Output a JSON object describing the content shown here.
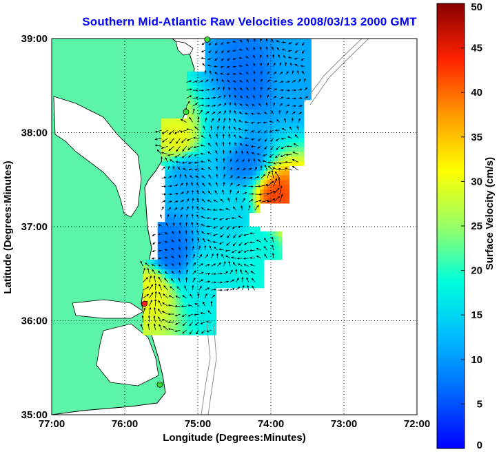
{
  "title": "Southern Mid-Atlantic Raw Velocities 2008/03/13 2000 GMT",
  "axes": {
    "xlabel": "Longitude (Degrees:Minutes)",
    "ylabel": "Latitude (Degrees:Minutes)",
    "xticks": [
      "77:00",
      "76:00",
      "75:00",
      "74:00",
      "73:00",
      "72:00"
    ],
    "yticks": [
      "39:00",
      "38:00",
      "37:00",
      "36:00",
      "35:00"
    ],
    "xlim": [
      -77,
      -72
    ],
    "ylim": [
      35,
      39
    ],
    "grid": "dotted"
  },
  "colorbar": {
    "label": "Surface Velocity (cm/s)",
    "ticks": [
      "0",
      "5",
      "10",
      "15",
      "20",
      "25",
      "30",
      "35",
      "40",
      "45",
      "50"
    ],
    "range": [
      0,
      50
    ],
    "colormap": "jet"
  },
  "colors": {
    "land": "#5cf4a8",
    "coastline": "#000000",
    "bathymetry": "#8c8c8c",
    "station_green": "#33dd33",
    "station_red": "#ff2020",
    "title": "#0000ff"
  },
  "stations": [
    {
      "lon": -74.87,
      "lat": 38.99,
      "color": "green"
    },
    {
      "lon": -75.16,
      "lat": 38.22,
      "color": "green"
    },
    {
      "lon": -75.73,
      "lat": 36.18,
      "color": "red"
    },
    {
      "lon": -75.52,
      "lat": 35.32,
      "color": "green"
    }
  ],
  "speed_regions": [
    {
      "lon": -74.35,
      "lat": 38.52,
      "speed": 7
    },
    {
      "lon": -73.7,
      "lat": 38.55,
      "speed": 11
    },
    {
      "lon": -74.6,
      "lat": 37.95,
      "speed": 14
    },
    {
      "lon": -74.4,
      "lat": 37.7,
      "speed": 8
    },
    {
      "lon": -75.2,
      "lat": 37.55,
      "speed": 11
    },
    {
      "lon": -75.3,
      "lat": 37.9,
      "speed": 30
    },
    {
      "lon": -73.95,
      "lat": 37.25,
      "speed": 42
    },
    {
      "lon": -74.5,
      "lat": 37.1,
      "speed": 15
    },
    {
      "lon": -74.2,
      "lat": 36.8,
      "speed": 18
    },
    {
      "lon": -75.4,
      "lat": 36.7,
      "speed": 7
    },
    {
      "lon": -74.9,
      "lat": 36.4,
      "speed": 17
    },
    {
      "lon": -75.65,
      "lat": 36.3,
      "speed": 30
    }
  ]
}
